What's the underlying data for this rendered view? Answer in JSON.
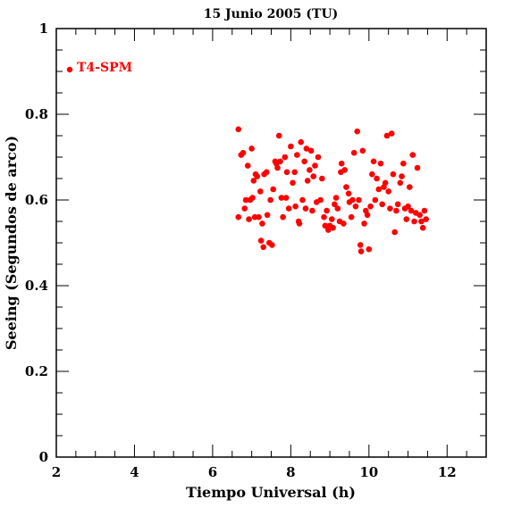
{
  "chart_data": {
    "type": "scatter",
    "title": "15 Junio 2005 (TU)",
    "xlabel": "Tiempo Universal (h)",
    "ylabel": "Seeing (Segundos de arco)",
    "xlim": [
      2,
      13
    ],
    "ylim": [
      0,
      1
    ],
    "xticks": [
      "2",
      "4",
      "6",
      "8",
      "10",
      "12"
    ],
    "yticks": [
      "0",
      "0.2",
      "0.4",
      "0.6",
      "0.8",
      "1"
    ],
    "grid": false,
    "legend_placement": "top-left",
    "series": [
      {
        "name": "T4-SPM",
        "color": "#ff0000",
        "marker": "circle",
        "points": [
          [
            6.66,
            0.765
          ],
          [
            6.66,
            0.56
          ],
          [
            6.73,
            0.705
          ],
          [
            6.78,
            0.71
          ],
          [
            6.82,
            0.58
          ],
          [
            6.85,
            0.6
          ],
          [
            6.9,
            0.68
          ],
          [
            6.93,
            0.555
          ],
          [
            6.96,
            0.6
          ],
          [
            7.0,
            0.72
          ],
          [
            7.02,
            0.605
          ],
          [
            7.05,
            0.645
          ],
          [
            7.08,
            0.56
          ],
          [
            7.1,
            0.66
          ],
          [
            7.14,
            0.655
          ],
          [
            7.18,
            0.56
          ],
          [
            7.22,
            0.62
          ],
          [
            7.24,
            0.505
          ],
          [
            7.27,
            0.545
          ],
          [
            7.3,
            0.49
          ],
          [
            7.32,
            0.66
          ],
          [
            7.38,
            0.665
          ],
          [
            7.4,
            0.565
          ],
          [
            7.45,
            0.5
          ],
          [
            7.48,
            0.6
          ],
          [
            7.52,
            0.495
          ],
          [
            7.55,
            0.625
          ],
          [
            7.6,
            0.69
          ],
          [
            7.63,
            0.685
          ],
          [
            7.66,
            0.675
          ],
          [
            7.7,
            0.75
          ],
          [
            7.73,
            0.69
          ],
          [
            7.76,
            0.605
          ],
          [
            7.8,
            0.56
          ],
          [
            7.85,
            0.7
          ],
          [
            7.88,
            0.605
          ],
          [
            7.9,
            0.665
          ],
          [
            7.95,
            0.58
          ],
          [
            8.0,
            0.725
          ],
          [
            8.05,
            0.64
          ],
          [
            8.1,
            0.665
          ],
          [
            8.12,
            0.585
          ],
          [
            8.16,
            0.705
          ],
          [
            8.2,
            0.55
          ],
          [
            8.22,
            0.545
          ],
          [
            8.26,
            0.735
          ],
          [
            8.3,
            0.6
          ],
          [
            8.35,
            0.69
          ],
          [
            8.38,
            0.58
          ],
          [
            8.4,
            0.72
          ],
          [
            8.43,
            0.645
          ],
          [
            8.48,
            0.67
          ],
          [
            8.52,
            0.715
          ],
          [
            8.55,
            0.575
          ],
          [
            8.58,
            0.655
          ],
          [
            8.62,
            0.68
          ],
          [
            8.66,
            0.595
          ],
          [
            8.7,
            0.7
          ],
          [
            8.76,
            0.6
          ],
          [
            8.8,
            0.65
          ],
          [
            8.85,
            0.56
          ],
          [
            8.88,
            0.54
          ],
          [
            8.92,
            0.575
          ],
          [
            8.96,
            0.53
          ],
          [
            9.0,
            0.54
          ],
          [
            9.05,
            0.555
          ],
          [
            9.08,
            0.535
          ],
          [
            9.12,
            0.59
          ],
          [
            9.16,
            0.605
          ],
          [
            9.2,
            0.58
          ],
          [
            9.25,
            0.55
          ],
          [
            9.28,
            0.665
          ],
          [
            9.3,
            0.685
          ],
          [
            9.35,
            0.545
          ],
          [
            9.38,
            0.67
          ],
          [
            9.42,
            0.63
          ],
          [
            9.48,
            0.615
          ],
          [
            9.5,
            0.595
          ],
          [
            9.55,
            0.56
          ],
          [
            9.58,
            0.6
          ],
          [
            9.62,
            0.71
          ],
          [
            9.66,
            0.585
          ],
          [
            9.7,
            0.76
          ],
          [
            9.74,
            0.6
          ],
          [
            9.78,
            0.495
          ],
          [
            9.8,
            0.48
          ],
          [
            9.84,
            0.715
          ],
          [
            9.88,
            0.545
          ],
          [
            9.92,
            0.575
          ],
          [
            9.96,
            0.565
          ],
          [
            10.0,
            0.485
          ],
          [
            10.04,
            0.585
          ],
          [
            10.08,
            0.66
          ],
          [
            10.12,
            0.69
          ],
          [
            10.16,
            0.6
          ],
          [
            10.2,
            0.65
          ],
          [
            10.25,
            0.625
          ],
          [
            10.3,
            0.685
          ],
          [
            10.34,
            0.59
          ],
          [
            10.38,
            0.63
          ],
          [
            10.42,
            0.64
          ],
          [
            10.46,
            0.75
          ],
          [
            10.5,
            0.62
          ],
          [
            10.54,
            0.58
          ],
          [
            10.58,
            0.755
          ],
          [
            10.62,
            0.66
          ],
          [
            10.66,
            0.525
          ],
          [
            10.7,
            0.575
          ],
          [
            10.74,
            0.59
          ],
          [
            10.8,
            0.64
          ],
          [
            10.84,
            0.655
          ],
          [
            10.88,
            0.685
          ],
          [
            10.92,
            0.58
          ],
          [
            10.96,
            0.555
          ],
          [
            11.0,
            0.585
          ],
          [
            11.04,
            0.63
          ],
          [
            11.08,
            0.575
          ],
          [
            11.12,
            0.705
          ],
          [
            11.16,
            0.55
          ],
          [
            11.2,
            0.57
          ],
          [
            11.24,
            0.675
          ],
          [
            11.3,
            0.565
          ],
          [
            11.34,
            0.55
          ],
          [
            11.38,
            0.535
          ],
          [
            11.42,
            0.575
          ],
          [
            11.46,
            0.555
          ]
        ]
      }
    ]
  }
}
